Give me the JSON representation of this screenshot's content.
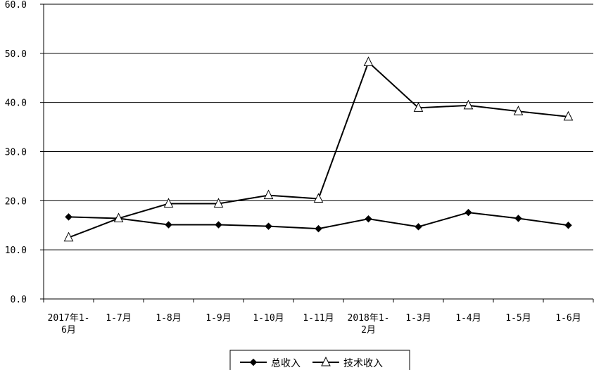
{
  "chart_data": {
    "type": "line",
    "categories": [
      "2017年1-|6月",
      "1-7月",
      "1-8月",
      "1-9月",
      "1-10月",
      "1-11月",
      "2018年1-|2月",
      "1-3月",
      "1-4月",
      "1-5月",
      "1-6月"
    ],
    "series": [
      {
        "name": "总收入",
        "marker": "diamond",
        "color": "#000000",
        "values": [
          16.7,
          16.4,
          15.1,
          15.1,
          14.8,
          14.3,
          16.3,
          14.7,
          17.6,
          16.4,
          15.0
        ]
      },
      {
        "name": "技术收入",
        "marker": "triangle",
        "color": "#000000",
        "values": [
          12.5,
          16.4,
          19.4,
          19.4,
          21.1,
          20.4,
          48.2,
          38.9,
          39.4,
          38.2,
          37.1
        ]
      }
    ],
    "ylim": [
      0,
      60
    ],
    "yticks": [
      "0.0",
      "10.0",
      "20.0",
      "30.0",
      "40.0",
      "50.0",
      "60.0"
    ],
    "grid": true,
    "legend_position": "bottom"
  }
}
